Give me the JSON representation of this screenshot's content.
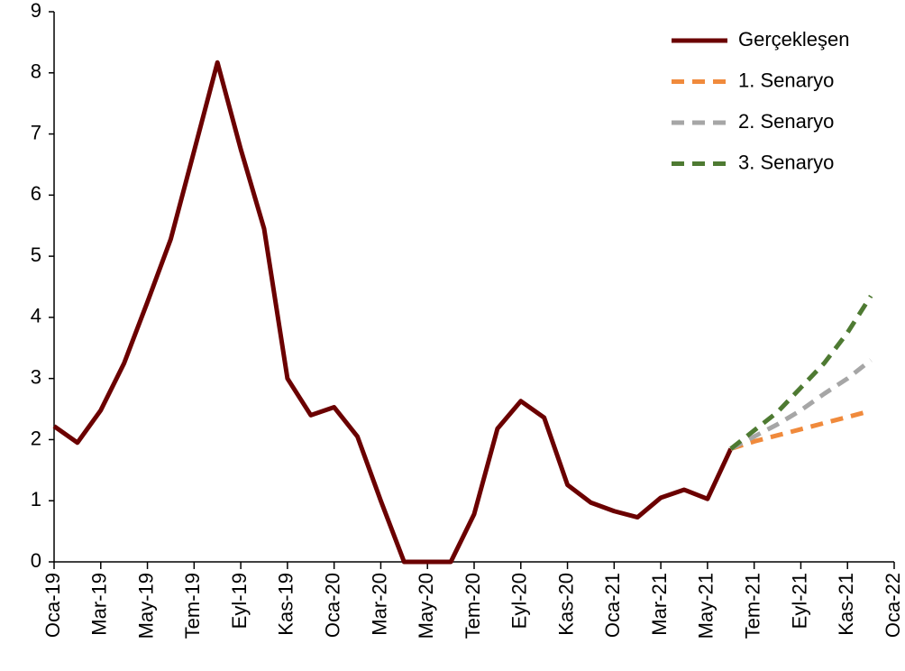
{
  "chart_data": {
    "type": "line",
    "categories": [
      "Oca-19",
      null,
      "Mar-19",
      null,
      "May-19",
      null,
      "Tem-19",
      null,
      "Eyl-19",
      null,
      "Kas-19",
      null,
      "Oca-20",
      null,
      "Mar-20",
      null,
      "May-20",
      null,
      "Tem-20",
      null,
      "Eyl-20",
      null,
      "Kas-20",
      null,
      "Oca-21",
      null,
      "Mar-21",
      null,
      "May-21",
      null,
      "Tem-21",
      null,
      "Eyl-21",
      null,
      "Kas-21",
      null,
      "Oca-22"
    ],
    "series": [
      {
        "name": "Gerçekleşen",
        "color": "#6b0000",
        "dashed": false,
        "values": [
          2.22,
          1.95,
          2.48,
          3.25,
          4.25,
          5.28,
          6.72,
          8.17,
          6.75,
          5.45,
          3.0,
          2.4,
          2.53,
          2.05,
          1.0,
          0,
          0,
          0,
          0.78,
          2.18,
          2.63,
          2.36,
          1.26,
          0.97,
          0.83,
          0.73,
          1.05,
          1.18,
          1.03,
          1.85,
          null,
          null,
          null,
          null,
          null,
          null,
          null
        ]
      },
      {
        "name": "1. Senaryo",
        "color": "#f08a3c",
        "dashed": true,
        "values": [
          null,
          null,
          null,
          null,
          null,
          null,
          null,
          null,
          null,
          null,
          null,
          null,
          null,
          null,
          null,
          null,
          null,
          null,
          null,
          null,
          null,
          null,
          null,
          null,
          null,
          null,
          null,
          null,
          null,
          1.85,
          1.97,
          2.07,
          2.17,
          2.27,
          2.37,
          2.47,
          null
        ]
      },
      {
        "name": "2. Senaryo",
        "color": "#a6a6a6",
        "dashed": true,
        "values": [
          null,
          null,
          null,
          null,
          null,
          null,
          null,
          null,
          null,
          null,
          null,
          null,
          null,
          null,
          null,
          null,
          null,
          null,
          null,
          null,
          null,
          null,
          null,
          null,
          null,
          null,
          null,
          null,
          null,
          1.85,
          2.05,
          2.25,
          2.48,
          2.75,
          3.0,
          3.3,
          null
        ]
      },
      {
        "name": "3. Senaryo",
        "color": "#4e7a32",
        "dashed": true,
        "values": [
          null,
          null,
          null,
          null,
          null,
          null,
          null,
          null,
          null,
          null,
          null,
          null,
          null,
          null,
          null,
          null,
          null,
          null,
          null,
          null,
          null,
          null,
          null,
          null,
          null,
          null,
          null,
          null,
          null,
          1.85,
          2.15,
          2.45,
          2.85,
          3.25,
          3.75,
          4.35,
          null
        ]
      }
    ],
    "ylim": [
      0,
      9
    ],
    "yticks": [
      0,
      1,
      2,
      3,
      4,
      5,
      6,
      7,
      8,
      9
    ],
    "grid": false,
    "legend": "top-right"
  }
}
